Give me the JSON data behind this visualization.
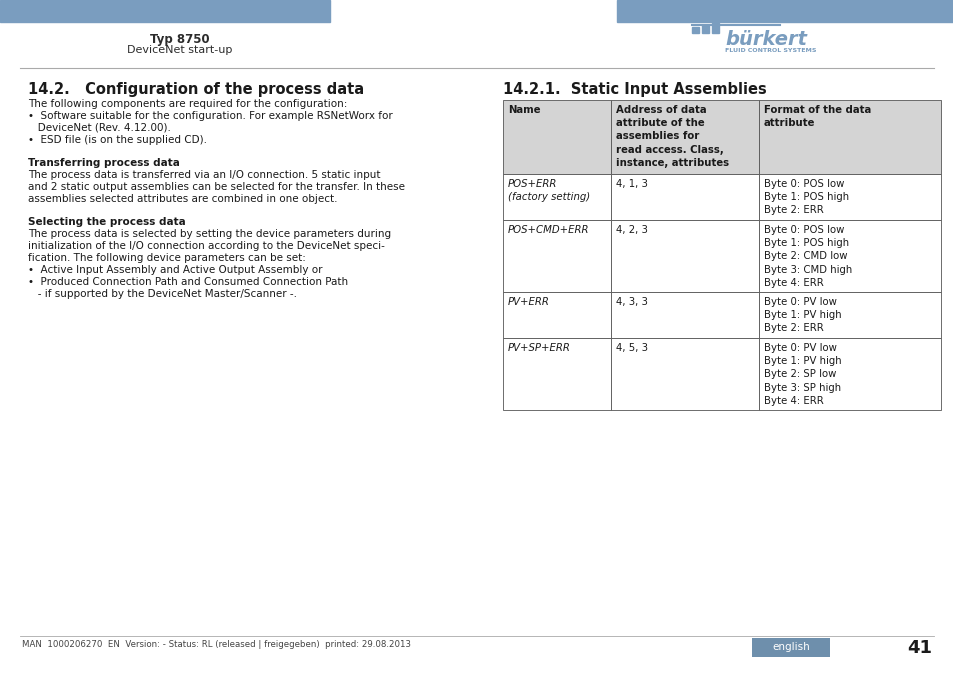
{
  "page_bg": "#ffffff",
  "header_bar_color": "#7a9dbf",
  "header_text_left_bold": "Typ 8750",
  "header_text_left_sub": "DeviceNet start-up",
  "header_text_color": "#2c2c2c",
  "separator_color": "#aaaaaa",
  "section_title_left": "14.2.   Configuration of the process data",
  "section_title_right": "14.2.1.  Static Input Assemblies",
  "table_header_bg": "#d4d4d4",
  "table_col1_header": "Name",
  "table_col2_header": "Address of data\nattribute of the\nassemblies for\nread access. Class,\ninstance, attributes",
  "table_col3_header": "Format of the data\nattribute",
  "table_rows": [
    {
      "col1": "POS+ERR\n(factory setting)",
      "col2": "4, 1, 3",
      "col3": "Byte 0: POS low\nByte 1: POS high\nByte 2: ERR"
    },
    {
      "col1": "POS+CMD+ERR",
      "col2": "4, 2, 3",
      "col3": "Byte 0: POS low\nByte 1: POS high\nByte 2: CMD low\nByte 3: CMD high\nByte 4: ERR"
    },
    {
      "col1": "PV+ERR",
      "col2": "4, 3, 3",
      "col3": "Byte 0: PV low\nByte 1: PV high\nByte 2: ERR"
    },
    {
      "col1": "PV+SP+ERR",
      "col2": "4, 5, 3",
      "col3": "Byte 0: PV low\nByte 1: PV high\nByte 2: SP low\nByte 3: SP high\nByte 4: ERR"
    }
  ],
  "footer_text": "MAN  1000206270  EN  Version: - Status: RL (released | freigegeben)  printed: 29.08.2013",
  "footer_lang": "english",
  "footer_lang_bg": "#6e8fac",
  "page_number": "41",
  "text_color": "#1a1a1a",
  "left_text_lines": [
    [
      "The following components are required for the configuration:",
      "normal"
    ],
    [
      "•  Software suitable for the configuration. For example RSNetWorx for",
      "normal"
    ],
    [
      "   DeviceNet (Rev. 4.12.00).",
      "normal"
    ],
    [
      "•  ESD file (is on the supplied CD).",
      "normal"
    ],
    [
      "",
      "normal"
    ],
    [
      "",
      "normal"
    ],
    [
      "Transferring process data",
      "bold"
    ],
    [
      "The process data is transferred via an I/O connection. 5 static input",
      "normal"
    ],
    [
      "and 2 static output assemblies can be selected for the transfer. In these",
      "normal"
    ],
    [
      "assemblies selected attributes are combined in one object.",
      "normal"
    ],
    [
      "",
      "normal"
    ],
    [
      "",
      "normal"
    ],
    [
      "Selecting the process data",
      "bold"
    ],
    [
      "The process data is selected by setting the device parameters during",
      "normal"
    ],
    [
      "initialization of the I/O connection according to the DeviceNet speci-",
      "normal"
    ],
    [
      "fication. The following device parameters can be set:",
      "normal"
    ],
    [
      "•  Active Input Assembly and Active Output Assembly or",
      "normal"
    ],
    [
      "•  Produced Connection Path and Consumed Connection Path",
      "normal"
    ],
    [
      "   - if supported by the DeviceNet Master/Scanner -.",
      "normal"
    ]
  ]
}
